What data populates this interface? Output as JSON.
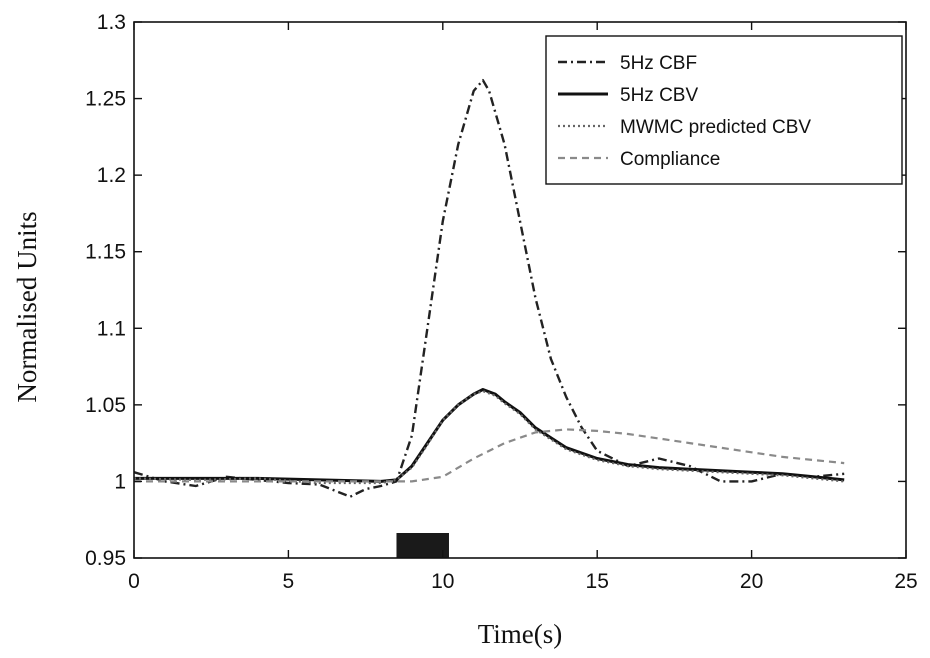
{
  "chart_data": {
    "type": "line",
    "title": "",
    "xlabel": "Time(s)",
    "ylabel": "Normalised Units",
    "xlim": [
      0,
      25
    ],
    "ylim": [
      0.95,
      1.3
    ],
    "xticks": [
      0,
      5,
      10,
      15,
      20,
      25
    ],
    "yticks": [
      0.95,
      1,
      1.05,
      1.1,
      1.15,
      1.2,
      1.25,
      1.3
    ],
    "xtick_labels": [
      "0",
      "5",
      "10",
      "15",
      "20",
      "25"
    ],
    "ytick_labels": [
      "0.95",
      "1",
      "1.05",
      "1.1",
      "1.15",
      "1.2",
      "1.25",
      "1.3"
    ],
    "grid": false,
    "legend_position": "top-right",
    "stimulus_bar": {
      "x_start": 8.5,
      "x_end": 10.2
    },
    "series": [
      {
        "name": "5Hz CBF",
        "style": "dashdot",
        "x": [
          0,
          1,
          2,
          3,
          4,
          5,
          6,
          7,
          7.5,
          8,
          8.5,
          9,
          9.5,
          10,
          10.5,
          11,
          11.3,
          11.5,
          12,
          12.5,
          13,
          13.5,
          14,
          14.5,
          15,
          16,
          17,
          18,
          19,
          20,
          21,
          22,
          23
        ],
        "y": [
          1.006,
          1.0,
          0.997,
          1.003,
          1.001,
          0.999,
          0.998,
          0.99,
          0.995,
          0.997,
          1.0,
          1.03,
          1.1,
          1.17,
          1.22,
          1.255,
          1.262,
          1.255,
          1.22,
          1.17,
          1.12,
          1.08,
          1.055,
          1.035,
          1.02,
          1.01,
          1.015,
          1.01,
          1.0,
          1.0,
          1.005,
          1.003,
          1.005
        ]
      },
      {
        "name": "5Hz CBV",
        "style": "solid",
        "x": [
          0,
          2,
          4,
          6,
          8,
          8.5,
          9,
          9.5,
          10,
          10.5,
          11,
          11.3,
          11.7,
          12,
          12.5,
          13,
          14,
          15,
          16,
          17,
          18,
          19,
          20,
          21,
          22,
          23
        ],
        "y": [
          1.002,
          1.002,
          1.002,
          1.001,
          1.0,
          1.001,
          1.01,
          1.025,
          1.04,
          1.05,
          1.057,
          1.06,
          1.057,
          1.052,
          1.045,
          1.035,
          1.022,
          1.015,
          1.011,
          1.009,
          1.008,
          1.007,
          1.006,
          1.005,
          1.003,
          1.001
        ]
      },
      {
        "name": "MWMC predicted CBV",
        "style": "dotted",
        "x": [
          0,
          2,
          4,
          6,
          8,
          8.5,
          9,
          9.5,
          10,
          10.5,
          11,
          11.3,
          11.7,
          12,
          12.5,
          13,
          14,
          15,
          16,
          17,
          18,
          19,
          20,
          21,
          22,
          23
        ],
        "y": [
          1.002,
          1.001,
          1.002,
          0.999,
          0.999,
          1.001,
          1.009,
          1.024,
          1.04,
          1.05,
          1.057,
          1.059,
          1.056,
          1.051,
          1.044,
          1.034,
          1.021,
          1.014,
          1.01,
          1.008,
          1.007,
          1.006,
          1.005,
          1.004,
          1.002,
          1.0
        ]
      },
      {
        "name": "Compliance",
        "style": "dashed",
        "x": [
          0,
          2,
          4,
          6,
          8,
          9,
          10,
          11,
          12,
          13,
          14,
          15,
          16,
          17,
          18,
          19,
          20,
          21,
          22,
          23
        ],
        "y": [
          1.0,
          1.0,
          1.0,
          1.0,
          1.0,
          1.0,
          1.003,
          1.015,
          1.025,
          1.032,
          1.034,
          1.033,
          1.031,
          1.028,
          1.025,
          1.022,
          1.019,
          1.016,
          1.014,
          1.012
        ]
      }
    ]
  }
}
